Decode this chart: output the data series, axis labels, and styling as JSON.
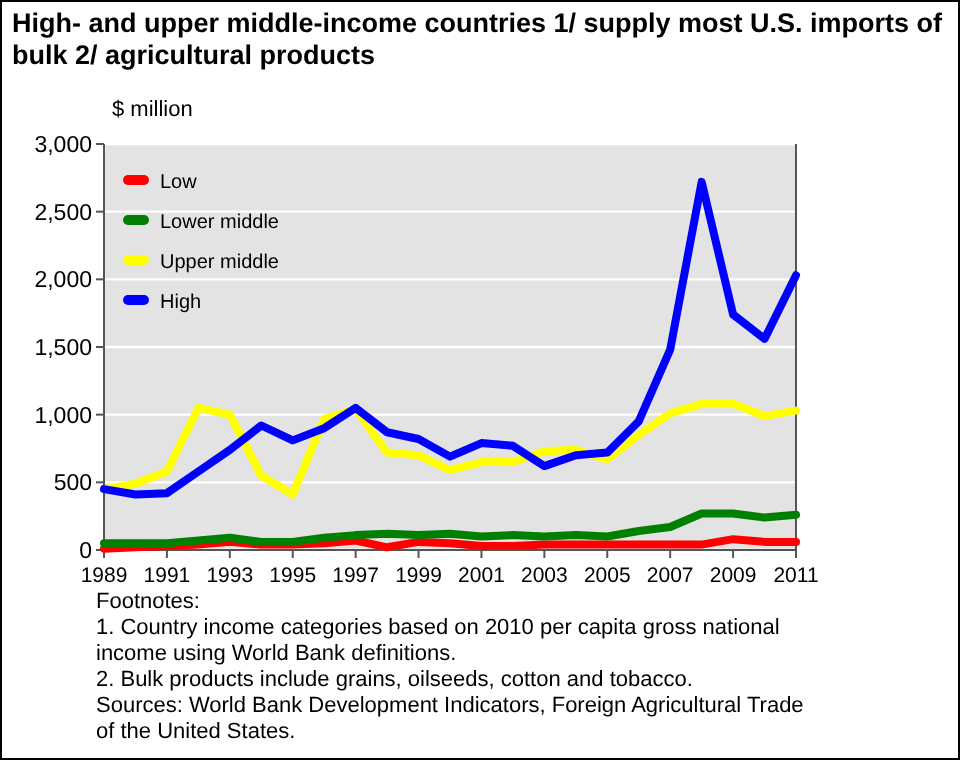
{
  "chart_data": {
    "type": "line",
    "title": "High- and upper middle-income countries 1/ supply most U.S. imports of bulk 2/ agricultural products",
    "ylabel": "$ million",
    "x": [
      1989,
      1990,
      1991,
      1992,
      1993,
      1994,
      1995,
      1996,
      1997,
      1998,
      1999,
      2000,
      2001,
      2002,
      2003,
      2004,
      2005,
      2006,
      2007,
      2008,
      2009,
      2010,
      2011
    ],
    "series": [
      {
        "name": "Low",
        "color": "#ff0000",
        "values": [
          10,
          20,
          30,
          40,
          60,
          40,
          40,
          50,
          70,
          20,
          60,
          50,
          30,
          30,
          40,
          40,
          40,
          40,
          40,
          40,
          80,
          60,
          60
        ]
      },
      {
        "name": "Lower middle",
        "color": "#008000",
        "values": [
          50,
          50,
          50,
          70,
          90,
          60,
          60,
          90,
          110,
          120,
          110,
          120,
          100,
          110,
          100,
          110,
          100,
          140,
          170,
          270,
          270,
          240,
          260
        ]
      },
      {
        "name": "Upper middle",
        "color": "#ffff00",
        "values": [
          450,
          490,
          580,
          1050,
          1000,
          550,
          410,
          970,
          1040,
          720,
          700,
          590,
          650,
          650,
          730,
          740,
          670,
          850,
          1010,
          1080,
          1080,
          990,
          1030
        ]
      },
      {
        "name": "High",
        "color": "#0000ff",
        "values": [
          450,
          410,
          420,
          580,
          740,
          920,
          810,
          900,
          1050,
          870,
          820,
          690,
          790,
          770,
          620,
          700,
          720,
          950,
          1480,
          2720,
          1740,
          1560,
          2030
        ]
      }
    ],
    "xlim": [
      1989,
      2011
    ],
    "xticks": [
      1989,
      1991,
      1993,
      1995,
      1997,
      1999,
      2001,
      2003,
      2005,
      2007,
      2009,
      2011
    ],
    "ylim": [
      0,
      3000
    ],
    "yticks": [
      {
        "value": 0,
        "label": "0"
      },
      {
        "value": 500,
        "label": "500"
      },
      {
        "value": 1000,
        "label": "1,000"
      },
      {
        "value": 1500,
        "label": "1,500"
      },
      {
        "value": 2000,
        "label": "2,000"
      },
      {
        "value": 2500,
        "label": "2,500"
      },
      {
        "value": 3000,
        "label": "3,000"
      }
    ],
    "grid": "y",
    "legend": "top left",
    "marker": "none",
    "line_style": "solid",
    "annotations": [
      "Footnotes:",
      "1. Country income categories based on 2010 per capita gross national income using World Bank definitions.",
      "2. Bulk products include grains, oilseeds, cotton and tobacco.",
      "Sources:  World Bank Development Indicators, Foreign Agricultural Trade of the United States."
    ]
  }
}
